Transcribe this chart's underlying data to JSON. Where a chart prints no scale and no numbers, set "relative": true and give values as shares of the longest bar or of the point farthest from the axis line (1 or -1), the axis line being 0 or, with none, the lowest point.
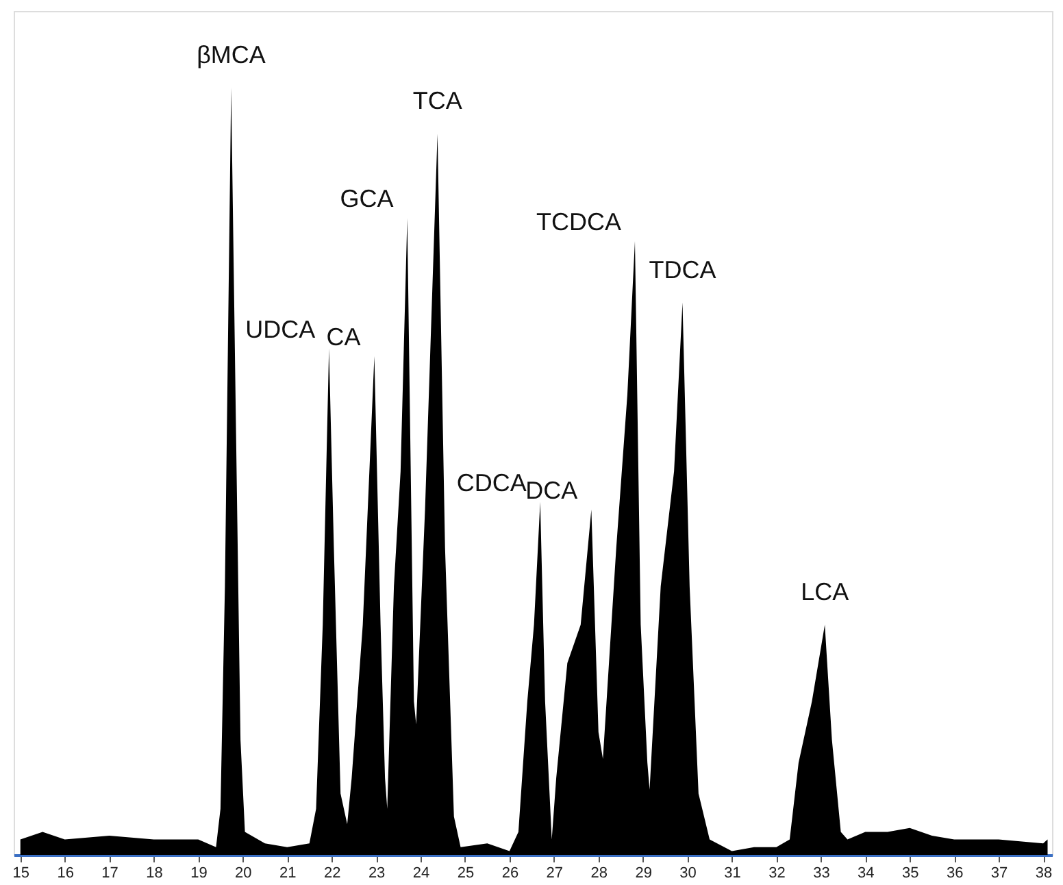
{
  "chart_data": {
    "type": "area",
    "relative": true,
    "color": "#000000",
    "x": [
      15.0,
      15.5,
      16,
      17,
      18,
      19,
      19.4,
      19.5,
      19.6,
      19.74,
      19.85,
      19.95,
      20.05,
      20.5,
      21.0,
      21.5,
      21.65,
      21.8,
      21.94,
      22.05,
      22.2,
      22.35,
      22.45,
      22.7,
      22.96,
      23.1,
      23.2,
      23.25,
      23.4,
      23.55,
      23.7,
      23.85,
      23.9,
      24.1,
      24.38,
      24.55,
      24.75,
      24.9,
      25.5,
      26,
      26.2,
      26.4,
      26.55,
      26.69,
      26.8,
      26.95,
      27.05,
      27.3,
      27.6,
      27.84,
      28.0,
      28.1,
      28.4,
      28.65,
      28.82,
      28.95,
      29.1,
      29.15,
      29.4,
      29.7,
      29.89,
      30.05,
      30.25,
      30.5,
      31,
      31.5,
      32,
      32.3,
      32.5,
      32.8,
      33.09,
      33.25,
      33.45,
      33.6,
      34,
      34.5,
      35,
      35.5,
      36,
      37,
      38,
      38.1
    ],
    "values": [
      0.02,
      0.03,
      0.02,
      0.025,
      0.02,
      0.02,
      0.01,
      0.06,
      0.35,
      1.0,
      0.55,
      0.15,
      0.03,
      0.015,
      0.01,
      0.015,
      0.06,
      0.3,
      0.66,
      0.4,
      0.08,
      0.04,
      0.1,
      0.3,
      0.65,
      0.3,
      0.1,
      0.06,
      0.35,
      0.5,
      0.83,
      0.2,
      0.17,
      0.45,
      0.94,
      0.4,
      0.05,
      0.01,
      0.015,
      0.005,
      0.03,
      0.2,
      0.3,
      0.46,
      0.2,
      0.02,
      0.1,
      0.25,
      0.3,
      0.45,
      0.16,
      0.125,
      0.4,
      0.6,
      0.8,
      0.3,
      0.12,
      0.085,
      0.35,
      0.5,
      0.72,
      0.35,
      0.08,
      0.02,
      0.005,
      0.01,
      0.01,
      0.02,
      0.12,
      0.2,
      0.3,
      0.15,
      0.03,
      0.02,
      0.03,
      0.03,
      0.035,
      0.025,
      0.02,
      0.02,
      0.015,
      0.02
    ],
    "xlim": [
      14.85,
      38.2
    ],
    "xticks": [
      15,
      16,
      17,
      18,
      19,
      20,
      21,
      22,
      23,
      24,
      25,
      26,
      27,
      28,
      29,
      30,
      31,
      32,
      33,
      34,
      35,
      36,
      37,
      38
    ],
    "grid": false,
    "annotations": [
      {
        "text": "βMCA",
        "x": 19.74,
        "y": 1.0
      },
      {
        "text": "UDCA",
        "x": 21.94,
        "y": 0.66
      },
      {
        "text": "CA",
        "x": 22.96,
        "y": 0.65
      },
      {
        "text": "GCA",
        "x": 23.7,
        "y": 0.83
      },
      {
        "text": "TCA",
        "x": 24.38,
        "y": 0.94
      },
      {
        "text": "CDCA",
        "x": 26.69,
        "y": 0.46
      },
      {
        "text": "DCA",
        "x": 27.84,
        "y": 0.45
      },
      {
        "text": "TCDCA",
        "x": 28.82,
        "y": 0.8
      },
      {
        "text": "TDCA",
        "x": 29.89,
        "y": 0.72
      },
      {
        "text": "LCA",
        "x": 33.09,
        "y": 0.3
      }
    ]
  }
}
